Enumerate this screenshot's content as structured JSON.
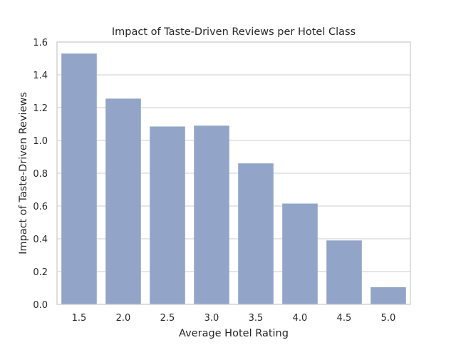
{
  "chart_data": {
    "type": "bar",
    "title": "Impact of Taste-Driven Reviews per Hotel Class",
    "xlabel": "Average Hotel Rating",
    "ylabel": "Impact of Taste-Driven Reviews",
    "categories": [
      "1.5",
      "2.0",
      "2.5",
      "3.0",
      "3.5",
      "4.0",
      "4.5",
      "5.0"
    ],
    "values": [
      1.53,
      1.255,
      1.085,
      1.09,
      0.86,
      0.615,
      0.39,
      0.105
    ],
    "ylim": [
      0,
      1.6
    ],
    "yticks": [
      "0.0",
      "0.2",
      "0.4",
      "0.6",
      "0.8",
      "1.0",
      "1.2",
      "1.4",
      "1.6"
    ],
    "grid": "horizontal",
    "legend": "none",
    "colors": {
      "bar": "#92a5c8",
      "grid": "#cccccc",
      "frame": "#cccccc",
      "text": "#262626"
    }
  }
}
